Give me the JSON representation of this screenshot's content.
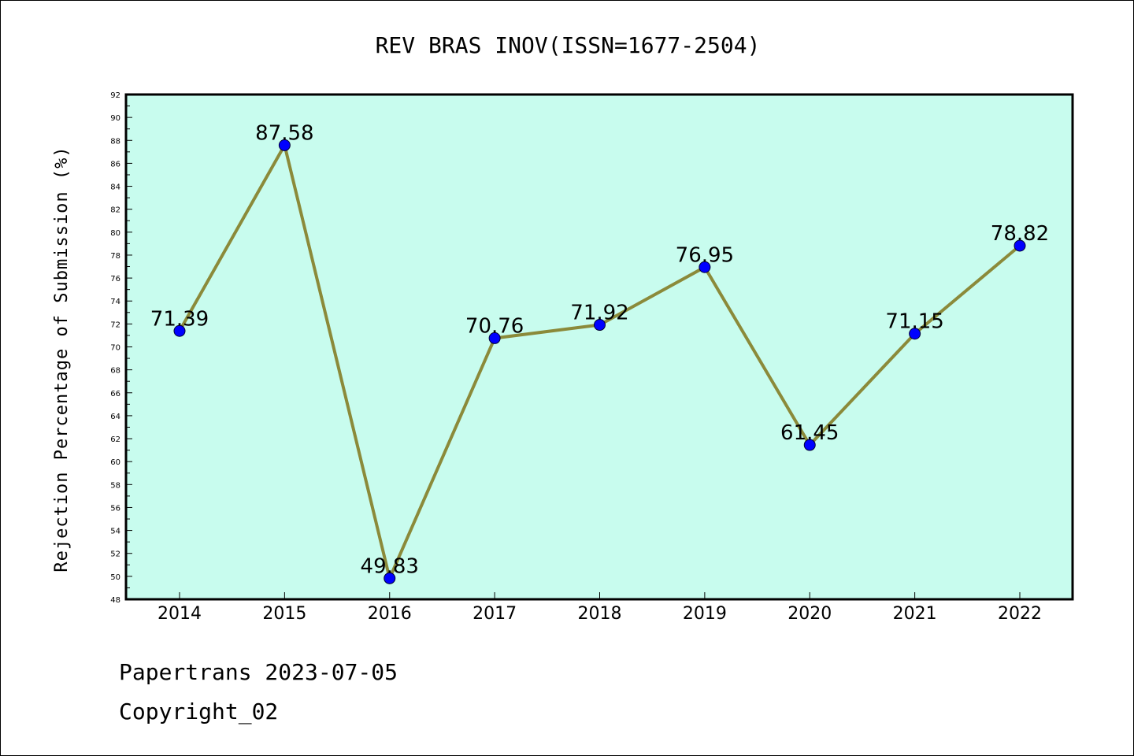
{
  "chart_data": {
    "type": "line",
    "title": "REV BRAS INOV(ISSN=1677-2504)",
    "xlabel": "",
    "ylabel": "Rejection Percentage of Submission (%)",
    "categories": [
      "2014",
      "2015",
      "2016",
      "2017",
      "2018",
      "2019",
      "2020",
      "2021",
      "2022"
    ],
    "series": [
      {
        "values": [
          71.39,
          87.58,
          49.83,
          70.76,
          71.92,
          76.95,
          61.45,
          71.15,
          78.82
        ],
        "data_labels": [
          "71.39",
          "87.58",
          "49.83",
          "70.76",
          "71.92",
          "76.95",
          "61.45",
          "71.15",
          "78.82"
        ]
      }
    ],
    "ylim": [
      48,
      92
    ],
    "yticks": [
      "48",
      "50",
      "52",
      "54",
      "56",
      "58",
      "60",
      "62",
      "64",
      "66",
      "68",
      "70",
      "72",
      "74",
      "76",
      "78",
      "80",
      "82",
      "84",
      "86",
      "88",
      "90",
      "92"
    ],
    "grid": false,
    "legend": "none",
    "colors": {
      "plot_background": "#c8fcee",
      "line": "#8b8a3a",
      "marker": "#0000ff",
      "axis": "#000000"
    }
  },
  "footer": {
    "date_line": "Papertrans 2023-07-05",
    "copyright": "Copyright_02"
  }
}
